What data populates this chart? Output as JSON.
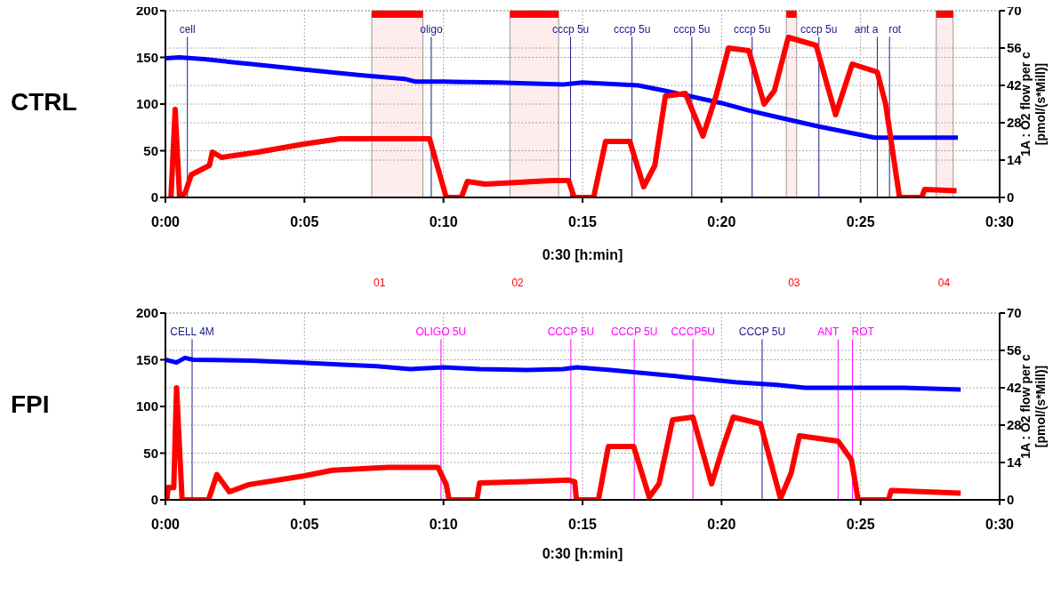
{
  "chart_data": [
    {
      "type": "line",
      "title": "CTRL",
      "xlabel": "0:30 [h:min]",
      "y2label": "1A : O2 flow per c\n[pmol/(s*Mill)]",
      "xlim": [
        0,
        30
      ],
      "xticks": [
        {
          "value": 0,
          "label": "0:00"
        },
        {
          "value": 5,
          "label": "0:05"
        },
        {
          "value": 10,
          "label": "0:10"
        },
        {
          "value": 15,
          "label": "0:15"
        },
        {
          "value": 20,
          "label": "0:20"
        },
        {
          "value": 25,
          "label": "0:25"
        },
        {
          "value": 30,
          "label": "0:30"
        }
      ],
      "ylim": [
        0,
        200
      ],
      "yticks": [
        0,
        50,
        100,
        150,
        200
      ],
      "y2lim": [
        0,
        70
      ],
      "y2ticks": [
        0,
        14,
        28,
        42,
        56,
        70
      ],
      "grid": true,
      "series": [
        {
          "color": "#0000ff",
          "axis": "y",
          "x": [
            0,
            0.5,
            1.4,
            3,
            5,
            7,
            8.6,
            9,
            10,
            12,
            14.3,
            15,
            17,
            18,
            20,
            21,
            22.3,
            23.5,
            25.5,
            28.5
          ],
          "values": [
            149,
            150,
            148,
            143,
            137,
            131,
            127,
            124,
            124,
            123,
            121,
            123,
            120,
            114,
            101,
            93,
            84,
            76,
            64,
            64
          ]
        },
        {
          "color": "#ff0000",
          "axis": "y2",
          "x": [
            0.2,
            0.35,
            0.51,
            0.71,
            0.93,
            1.58,
            1.69,
            2.02,
            3.33,
            4.97,
            6.28,
            9.5,
            10.1,
            10.64,
            10.86,
            11.5,
            13.9,
            14.5,
            14.7,
            15.4,
            15.83,
            16.7,
            17.2,
            17.6,
            17.98,
            18.7,
            19.33,
            19.8,
            20.25,
            20.98,
            21.53,
            21.9,
            22.4,
            23.4,
            24.1,
            24.7,
            25.6,
            25.9,
            26.4,
            27.2,
            27.3,
            28.45
          ],
          "values": [
            0,
            33,
            0,
            1.7,
            8.5,
            12,
            17,
            15,
            17,
            20,
            22,
            22,
            0,
            0,
            6,
            5,
            6.3,
            6.3,
            0,
            0,
            21,
            21,
            4,
            12,
            38,
            39,
            23,
            38,
            56,
            55,
            35,
            40,
            60,
            57,
            31,
            50,
            47,
            35,
            0,
            0,
            3,
            2.5
          ]
        }
      ],
      "ref_lines": [
        {
          "axis": "x",
          "value": 0.79,
          "label": "cell",
          "color": "#1a1a8c"
        },
        {
          "axis": "x",
          "value": 9.56,
          "label": "oligo",
          "color": "#1a1a8c"
        },
        {
          "axis": "x",
          "value": 14.57,
          "label": "cccp 5u",
          "color": "#1a1a8c"
        },
        {
          "axis": "x",
          "value": 16.78,
          "label": "cccp 5u",
          "color": "#1a1a8c"
        },
        {
          "axis": "x",
          "value": 18.93,
          "label": "cccp 5u",
          "color": "#1a1a8c"
        },
        {
          "axis": "x",
          "value": 21.1,
          "label": "cccp 5u",
          "color": "#1a1a8c"
        },
        {
          "axis": "x",
          "value": 23.5,
          "label": "cccp 5u",
          "color": "#1a1a8c"
        },
        {
          "axis": "x",
          "value": 25.6,
          "label": "ant a",
          "color": "#1a1a8c"
        },
        {
          "axis": "x",
          "value": 26.04,
          "label": "rot",
          "color": "#1a1a8c"
        }
      ],
      "bands": [
        {
          "axis": "x",
          "from": 7.42,
          "to": 9.26,
          "label": "01",
          "color": "#ff0000"
        },
        {
          "axis": "x",
          "from": 12.39,
          "to": 14.14,
          "label": "02",
          "color": "#ff0000"
        },
        {
          "axis": "x",
          "from": 22.33,
          "to": 22.7,
          "label": "03",
          "color": "#ff0000"
        },
        {
          "axis": "x",
          "from": 27.72,
          "to": 28.33,
          "label": "04",
          "color": "#ff0000"
        }
      ]
    },
    {
      "type": "line",
      "title": "FPI",
      "xlabel": "0:30 [h:min]",
      "y2label": "1A : O2 flow per c\n[pmol/(s*Mill)]",
      "xlim": [
        0,
        30
      ],
      "xticks": [
        {
          "value": 0,
          "label": "0:00"
        },
        {
          "value": 5,
          "label": "0:05"
        },
        {
          "value": 10,
          "label": "0:10"
        },
        {
          "value": 15,
          "label": "0:15"
        },
        {
          "value": 20,
          "label": "0:20"
        },
        {
          "value": 25,
          "label": "0:25"
        },
        {
          "value": 30,
          "label": "0:30"
        }
      ],
      "ylim": [
        0,
        200
      ],
      "yticks": [
        0,
        50,
        100,
        150,
        200
      ],
      "y2lim": [
        0,
        70
      ],
      "y2ticks": [
        0,
        14,
        28,
        42,
        56,
        70
      ],
      "grid": true,
      "series": [
        {
          "color": "#0000ff",
          "axis": "y",
          "x": [
            0,
            0.4,
            0.7,
            1,
            3.1,
            4.9,
            6.2,
            7.6,
            8.8,
            10,
            11.3,
            13,
            14.3,
            14.8,
            16,
            18.5,
            20.5,
            22,
            23,
            26.5,
            28.6
          ],
          "values": [
            150,
            147,
            152,
            150,
            149,
            147,
            145,
            143,
            140,
            142,
            140,
            139,
            140,
            142,
            139,
            132,
            126,
            123,
            120,
            120,
            118
          ]
        },
        {
          "color": "#ff0000",
          "axis": "y2",
          "x": [
            0.05,
            0.1,
            0.3,
            0.4,
            0.6,
            1.55,
            1.85,
            2.3,
            3,
            5,
            6,
            8,
            9.8,
            10.1,
            10.2,
            11.2,
            11.3,
            13,
            14.5,
            14.72,
            14.78,
            15.57,
            15.93,
            16.84,
            17.4,
            17.75,
            18.24,
            18.97,
            19.64,
            20.06,
            20.42,
            21.4,
            22.12,
            22.5,
            22.8,
            24.19,
            24.67,
            24.91,
            26,
            26.1,
            28.6
          ],
          "values": [
            0,
            4.7,
            4.6,
            42,
            0,
            0,
            9.5,
            3,
            5.7,
            9,
            11.1,
            12.2,
            12.2,
            5.7,
            0,
            0,
            6.3,
            6.8,
            7.4,
            6.8,
            0,
            0,
            20,
            20,
            1,
            6,
            30,
            31,
            6,
            20,
            31,
            28.5,
            0.5,
            10,
            24,
            22,
            15,
            0,
            0,
            3.5,
            2.5
          ]
        }
      ],
      "ref_lines": [
        {
          "axis": "x",
          "value": 0.96,
          "label": "CELL 4M",
          "color": "#1a1a8c"
        },
        {
          "axis": "x",
          "value": 9.91,
          "label": "OLIGO 5U",
          "color": "#ff00ff"
        },
        {
          "axis": "x",
          "value": 14.58,
          "label": "CCCP 5U",
          "color": "#ff00ff"
        },
        {
          "axis": "x",
          "value": 16.86,
          "label": "CCCP 5U",
          "color": "#ff00ff"
        },
        {
          "axis": "x",
          "value": 18.97,
          "label": "CCCP5U",
          "color": "#ff00ff"
        },
        {
          "axis": "x",
          "value": 21.46,
          "label": "CCCP 5U",
          "color": "#1a1a8c"
        },
        {
          "axis": "x",
          "value": 24.19,
          "label": "ANT",
          "color": "#ff00ff"
        },
        {
          "axis": "x",
          "value": 24.71,
          "label": "ROT",
          "color": "#ff00ff"
        }
      ]
    }
  ]
}
